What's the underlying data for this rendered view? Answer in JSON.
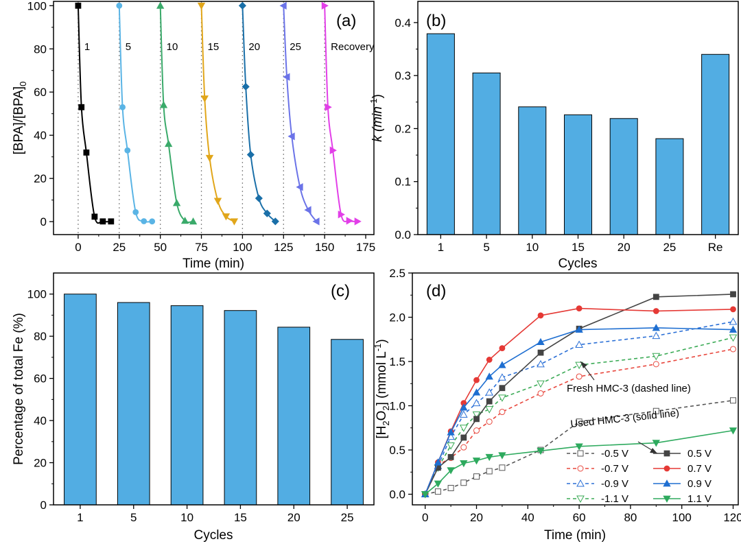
{
  "chart_data": [
    {
      "id": "a",
      "type": "scatter",
      "panel_label": "(a)",
      "xlabel": "Time (min)",
      "ylabel": "[BPA]/[BPA]",
      "ylabel_sub": "0",
      "xlim": [
        -15,
        180
      ],
      "ylim": [
        -6,
        102
      ],
      "xticks": [
        0,
        25,
        50,
        75,
        100,
        125,
        150,
        175
      ],
      "yticks": [
        0,
        20,
        40,
        60,
        80,
        100
      ],
      "grid": false,
      "cycle_boundaries": [
        0,
        25,
        50,
        75,
        100,
        125,
        150
      ],
      "series": [
        {
          "name": "1",
          "color": "#000000",
          "marker": "square",
          "x": [
            0,
            2,
            5,
            10,
            15,
            20
          ],
          "y": [
            100,
            53,
            32,
            2.3,
            0.1,
            0.1
          ]
        },
        {
          "name": "5",
          "color": "#5ab4e5",
          "marker": "circle",
          "x": [
            25,
            27,
            30,
            35,
            40,
            45
          ],
          "y": [
            100,
            53,
            33,
            4.4,
            0.2,
            0.1
          ]
        },
        {
          "name": "10",
          "color": "#3aaa6a",
          "marker": "triangle-up",
          "x": [
            50,
            52,
            55,
            60,
            65,
            70
          ],
          "y": [
            100,
            54,
            36,
            8.6,
            0.4,
            0.1
          ]
        },
        {
          "name": "15",
          "color": "#e1a61a",
          "marker": "triangle-down",
          "x": [
            75,
            77,
            80,
            85,
            90,
            95
          ],
          "y": [
            100,
            57,
            29.5,
            9.6,
            2.4,
            0.1
          ]
        },
        {
          "name": "20",
          "color": "#1a6fa8",
          "marker": "diamond",
          "x": [
            100,
            102,
            105,
            110,
            115,
            120
          ],
          "y": [
            100,
            62.5,
            31,
            10.8,
            3.8,
            0.1
          ]
        },
        {
          "name": "25",
          "color": "#6b73e8",
          "marker": "triangle-left",
          "x": [
            125,
            127,
            130,
            135,
            140,
            145
          ],
          "y": [
            100,
            67,
            39.5,
            16,
            5.4,
            0.1
          ]
        },
        {
          "name": "Recovery",
          "color": "#e23fe8",
          "marker": "triangle-right",
          "x": [
            150,
            152,
            155,
            160,
            165,
            170
          ],
          "y": [
            100,
            53,
            33,
            3.3,
            0.4,
            0.1
          ]
        }
      ]
    },
    {
      "id": "b",
      "type": "bar",
      "panel_label": "(b)",
      "xlabel": "Cycles",
      "ylabel": "k (min",
      "ylabel_sup": "-1",
      "categories": [
        "1",
        "5",
        "10",
        "15",
        "20",
        "25",
        "Re"
      ],
      "values": [
        0.379,
        0.305,
        0.241,
        0.226,
        0.219,
        0.181,
        0.34
      ],
      "ylim": [
        0,
        0.44
      ],
      "yticks": [
        "0.0",
        "0.1",
        "0.2",
        "0.3",
        "0.4"
      ],
      "bar_color": "#52ade3",
      "grid": false
    },
    {
      "id": "c",
      "type": "bar",
      "panel_label": "(c)",
      "xlabel": "Cycles",
      "ylabel": "Percentage of total Fe (%)",
      "categories": [
        "1",
        "5",
        "10",
        "15",
        "20",
        "25"
      ],
      "values": [
        100,
        96,
        94.5,
        92.2,
        84.3,
        78.5
      ],
      "ylim": [
        0,
        110
      ],
      "yticks": [
        "0",
        "20",
        "40",
        "60",
        "80",
        "100"
      ],
      "bar_color": "#52ade3",
      "grid": false
    },
    {
      "id": "d",
      "type": "line",
      "panel_label": "(d)",
      "xlabel": "Time (min)",
      "ylabel": "[H",
      "ylabel_sub": "2",
      "ylabel_mid": "O",
      "ylabel_sub2": "2",
      "ylabel_tail": "] (mmol L",
      "ylabel_sup": "-1",
      "ylabel_end": ")",
      "xlim": [
        -5,
        122
      ],
      "ylim": [
        -0.12,
        2.5
      ],
      "xticks": [
        "0",
        "20",
        "40",
        "60",
        "80",
        "100",
        "120"
      ],
      "yticks": [
        "0.0",
        "0.5",
        "1.0",
        "1.5",
        "2.0",
        "2.5"
      ],
      "x": [
        0,
        5,
        10,
        15,
        20,
        25,
        30,
        45,
        60,
        90,
        120
      ],
      "grid": false,
      "series": [
        {
          "name": "-0.5 V",
          "color": "#555555",
          "style": "dashed",
          "marker": "square-open",
          "values": [
            0,
            0.03,
            0.07,
            0.13,
            0.2,
            0.26,
            0.3,
            0.5,
            0.82,
            0.94,
            1.06
          ]
        },
        {
          "name": "-0.7 V",
          "color": "#e8463c",
          "style": "dashed",
          "marker": "circle-open",
          "values": [
            0,
            0.33,
            0.41,
            0.53,
            0.72,
            0.82,
            0.93,
            1.14,
            1.33,
            1.47,
            1.64
          ]
        },
        {
          "name": "-0.9 V",
          "color": "#2a6fd6",
          "style": "dashed",
          "marker": "triangle-up-open",
          "values": [
            0,
            0.32,
            0.65,
            0.9,
            1.03,
            1.15,
            1.32,
            1.47,
            1.69,
            1.79,
            1.95
          ]
        },
        {
          "name": "-1.1 V",
          "color": "#3aaa55",
          "style": "dashed",
          "marker": "triangle-down-open",
          "values": [
            0,
            0.3,
            0.55,
            0.75,
            0.9,
            0.96,
            1.09,
            1.25,
            1.46,
            1.56,
            1.77
          ]
        },
        {
          "name": "0.5 V",
          "color": "#444444",
          "style": "solid",
          "marker": "square",
          "values": [
            0,
            0.3,
            0.42,
            0.64,
            0.85,
            1.05,
            1.2,
            1.6,
            1.87,
            2.23,
            2.26
          ]
        },
        {
          "name": "0.7 V",
          "color": "#e53935",
          "style": "solid",
          "marker": "circle",
          "values": [
            0,
            0.36,
            0.71,
            1.03,
            1.29,
            1.52,
            1.65,
            2.02,
            2.1,
            2.07,
            2.09
          ]
        },
        {
          "name": "0.9 V",
          "color": "#1f6fd1",
          "style": "solid",
          "marker": "triangle-up",
          "values": [
            0,
            0.36,
            0.7,
            0.98,
            1.15,
            1.33,
            1.46,
            1.72,
            1.86,
            1.88,
            1.86
          ]
        },
        {
          "name": "1.1 V",
          "color": "#2eaa5e",
          "style": "solid",
          "marker": "triangle-down",
          "values": [
            0,
            0.12,
            0.27,
            0.35,
            0.38,
            0.42,
            0.44,
            0.49,
            0.54,
            0.58,
            0.72
          ]
        }
      ],
      "annotations": [
        "Fresh HMC-3 (dashed line)",
        "Used HMC-3 (solid line)"
      ],
      "legend_position": "bottom-right"
    }
  ]
}
